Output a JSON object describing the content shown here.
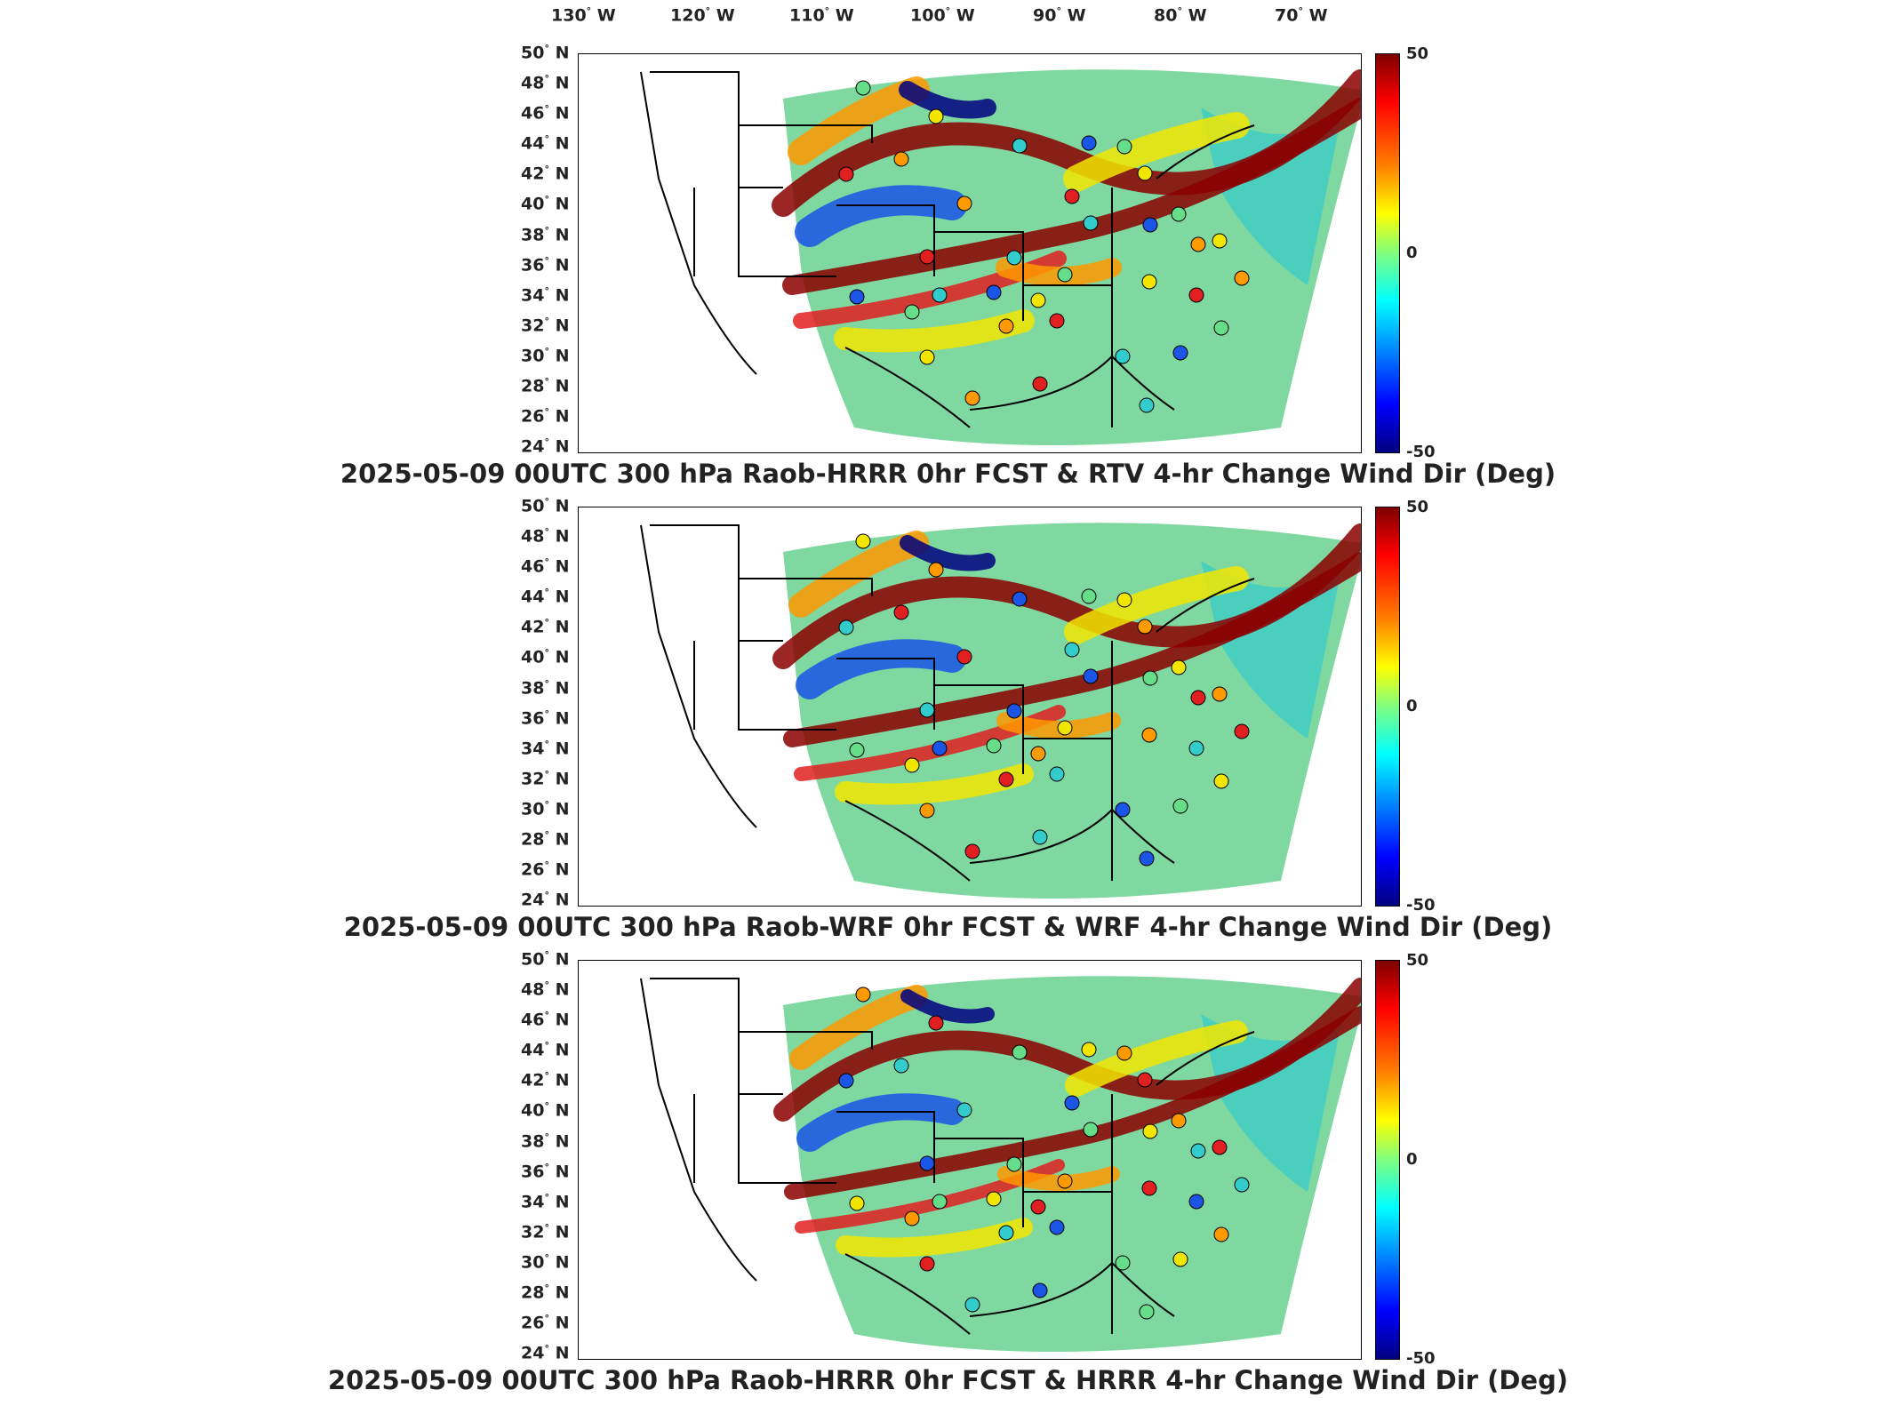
{
  "lon_labels": [
    {
      "deg": "130",
      "hem": "W"
    },
    {
      "deg": "120",
      "hem": "W"
    },
    {
      "deg": "110",
      "hem": "W"
    },
    {
      "deg": "100",
      "hem": "W"
    },
    {
      "deg": "90",
      "hem": "W"
    },
    {
      "deg": "80",
      "hem": "W"
    },
    {
      "deg": "70",
      "hem": "W"
    }
  ],
  "lat_labels": [
    {
      "deg": "50",
      "hem": "N"
    },
    {
      "deg": "48",
      "hem": "N"
    },
    {
      "deg": "46",
      "hem": "N"
    },
    {
      "deg": "44",
      "hem": "N"
    },
    {
      "deg": "42",
      "hem": "N"
    },
    {
      "deg": "40",
      "hem": "N"
    },
    {
      "deg": "38",
      "hem": "N"
    },
    {
      "deg": "36",
      "hem": "N"
    },
    {
      "deg": "34",
      "hem": "N"
    },
    {
      "deg": "32",
      "hem": "N"
    },
    {
      "deg": "30",
      "hem": "N"
    },
    {
      "deg": "28",
      "hem": "N"
    },
    {
      "deg": "26",
      "hem": "N"
    },
    {
      "deg": "24",
      "hem": "N"
    }
  ],
  "colorbar": {
    "max": "50",
    "mid": "0",
    "min": "-50"
  },
  "degree_symbol": "°",
  "panels": [
    {
      "title": "2025-05-09 00UTC 300 hPa Raob-HRRR 0hr FCST & RTV 4-hr Change Wind Dir (Deg)"
    },
    {
      "title": "2025-05-09 00UTC 300 hPa Raob-WRF 0hr FCST & WRF 4-hr Change Wind Dir (Deg)"
    },
    {
      "title": "2025-05-09 00UTC 300 hPa Raob-HRRR 0hr FCST & HRRR 4-hr Change Wind Dir (Deg)"
    }
  ],
  "colors": {
    "dark_red": "#8b0000",
    "red": "#e02020",
    "orange": "#ff9900",
    "yellow": "#f2e600",
    "green": "#66dd88",
    "cyan": "#33cccc",
    "blue": "#1a55e6",
    "dark_blue": "#00007f",
    "background_field": "#7fd8a0"
  }
}
